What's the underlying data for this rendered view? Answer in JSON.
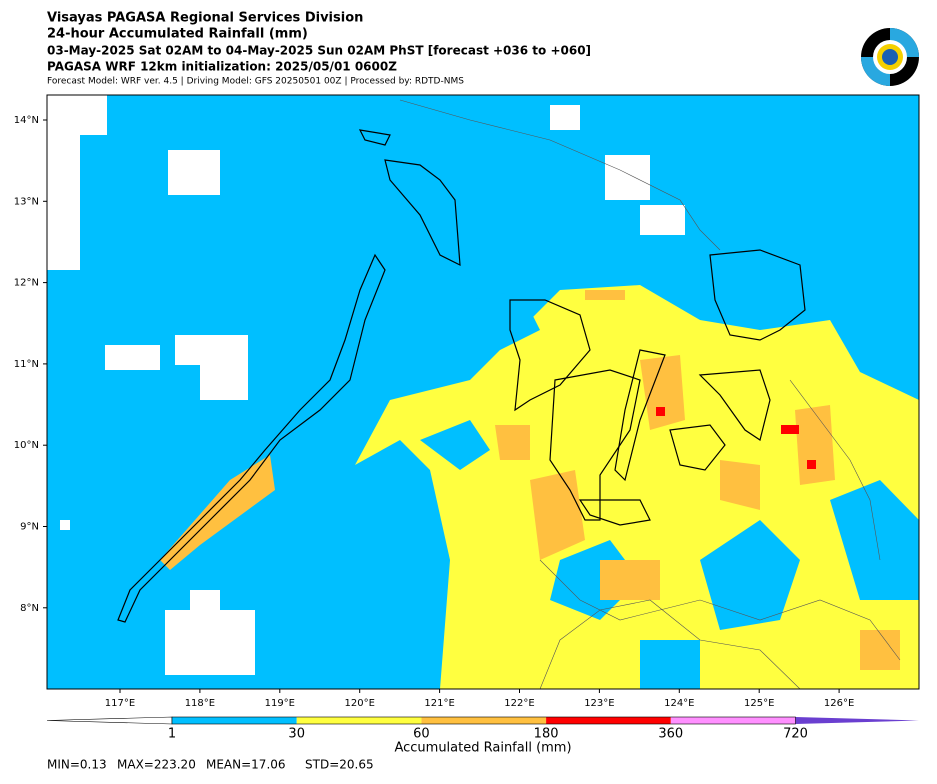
{
  "header": {
    "title": "Visayas PAGASA Regional Services Division",
    "subtitle": "24-hour Accumulated Rainfall (mm)",
    "period": "03-May-2025 Sat 02AM to 04-May-2025 Sun 02AM PhST [forecast +036 to +060]",
    "model_init": "PAGASA WRF 12km initialization: 2025/05/01 0600Z",
    "model_info": "Forecast Model: WRF ver. 4.5 | Driving Model: GFS 20250501 00Z | Processed by: RDTD-NMS"
  },
  "map": {
    "lon_labels": [
      "117°E",
      "118°E",
      "119°E",
      "120°E",
      "121°E",
      "122°E",
      "123°E",
      "124°E",
      "125°E",
      "126°E"
    ],
    "lat_labels": [
      "14°N",
      "13°N",
      "12°N",
      "11°N",
      "10°N",
      "9°N",
      "8°N"
    ]
  },
  "colorbar": {
    "under_color": "#ffffff",
    "colors": [
      "#00bfff",
      "#ffff40",
      "#ffc040",
      "#ff0000",
      "#ff90ff"
    ],
    "over_color": "#6a3fd0",
    "tick_labels": [
      "1",
      "30",
      "60",
      "180",
      "360",
      "720"
    ],
    "label": "Accumulated Rainfall (mm)"
  },
  "stats": [
    "MIN=0.13",
    "MAX=223.20",
    "MEAN=17.06",
    "STD=20.65"
  ]
}
